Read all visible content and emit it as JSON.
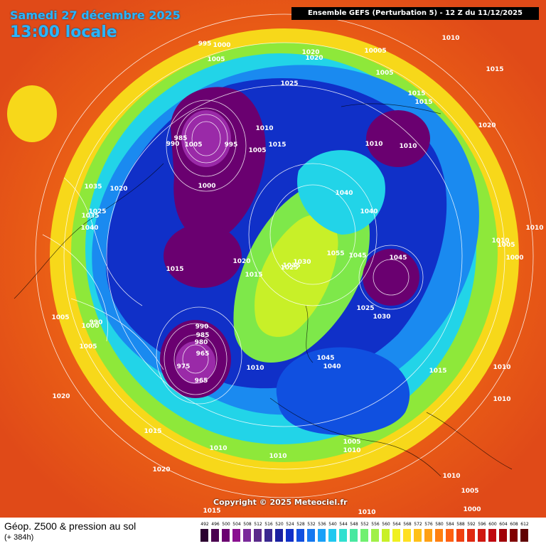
{
  "header": {
    "date": "Samedi 27 décembre 2025",
    "time": "13:00 locale",
    "model": "Ensemble GEFS  (Perturbation 5)  -  12 Z du 11/12/2025"
  },
  "copyright": "Copyright © 2025 Meteociel.fr",
  "footer": {
    "title": "Géop. Z500 & pression au sol",
    "subtitle": "(+ 384h)"
  },
  "legend": {
    "values": [
      "492",
      "496",
      "500",
      "504",
      "508",
      "512",
      "516",
      "520",
      "524",
      "528",
      "532",
      "536",
      "540",
      "544",
      "548",
      "552",
      "556",
      "560",
      "564",
      "568",
      "572",
      "576",
      "580",
      "584",
      "588",
      "592",
      "596",
      "600",
      "604",
      "608",
      "612"
    ],
    "colors": [
      "#2b0030",
      "#4a0050",
      "#6a0070",
      "#8a1090",
      "#7a2a9a",
      "#5a2a8a",
      "#3a2890",
      "#1a20a0",
      "#1030c8",
      "#1050e0",
      "#1478f0",
      "#18a0f8",
      "#20c8f0",
      "#30e0d0",
      "#48e8a0",
      "#70f070",
      "#a0f048",
      "#c8f028",
      "#f0f020",
      "#ffe020",
      "#ffc018",
      "#ffa014",
      "#ff8010",
      "#ff6010",
      "#f04010",
      "#e02810",
      "#d01810",
      "#c00810",
      "#a00008",
      "#800000",
      "#600000"
    ]
  },
  "pressure_labels": [
    {
      "text": "995"
    },
    {
      "text": "1000"
    },
    {
      "text": "1005"
    },
    {
      "text": "1020"
    },
    {
      "text": "1020"
    },
    {
      "text": "10005"
    },
    {
      "text": "1010"
    },
    {
      "text": "1015"
    },
    {
      "text": "1025"
    },
    {
      "text": "1005"
    },
    {
      "text": "1015"
    },
    {
      "text": "1015"
    },
    {
      "text": "1020"
    },
    {
      "text": "1010"
    },
    {
      "text": "985"
    },
    {
      "text": "990"
    },
    {
      "text": "1005"
    },
    {
      "text": "995"
    },
    {
      "text": "1010"
    },
    {
      "text": "1005"
    },
    {
      "text": "1015"
    },
    {
      "text": "1010"
    },
    {
      "text": "1035"
    },
    {
      "text": "1020"
    },
    {
      "text": "1000"
    },
    {
      "text": "1040"
    },
    {
      "text": "1025"
    },
    {
      "text": "1035"
    },
    {
      "text": "1040"
    },
    {
      "text": "1040"
    },
    {
      "text": "1010"
    },
    {
      "text": "1005"
    },
    {
      "text": "1010"
    },
    {
      "text": "1000"
    },
    {
      "text": "1015"
    },
    {
      "text": "1020"
    },
    {
      "text": "1055"
    },
    {
      "text": "1045"
    },
    {
      "text": "1045"
    },
    {
      "text": "1015"
    },
    {
      "text": "1025"
    },
    {
      "text": "1030"
    },
    {
      "text": "1035"
    },
    {
      "text": "1025"
    },
    {
      "text": "1030"
    },
    {
      "text": "1005"
    },
    {
      "text": "990"
    },
    {
      "text": "1000"
    },
    {
      "text": "1005"
    },
    {
      "text": "990"
    },
    {
      "text": "985"
    },
    {
      "text": "980"
    },
    {
      "text": "965"
    },
    {
      "text": "975"
    },
    {
      "text": "965"
    },
    {
      "text": "1010"
    },
    {
      "text": "1045"
    },
    {
      "text": "1040"
    },
    {
      "text": "1015"
    },
    {
      "text": "1010"
    },
    {
      "text": "1010"
    },
    {
      "text": "1020"
    },
    {
      "text": "1015"
    },
    {
      "text": "1010"
    },
    {
      "text": "1010"
    },
    {
      "text": "1005"
    },
    {
      "text": "1020"
    },
    {
      "text": "1010"
    },
    {
      "text": "1010"
    },
    {
      "text": "1005"
    },
    {
      "text": "1000"
    },
    {
      "text": "1015"
    },
    {
      "text": "1010"
    }
  ]
}
